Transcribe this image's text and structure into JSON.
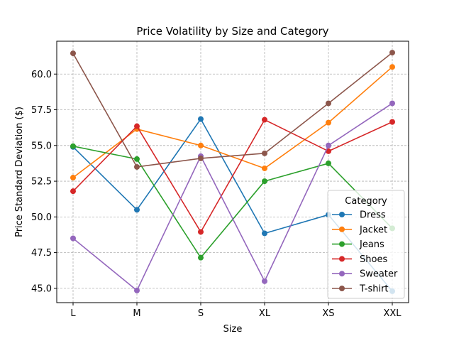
{
  "chart_data": {
    "type": "line",
    "title": "Price Volatility by Size and Category",
    "xlabel": "Size",
    "ylabel": "Price Standard Deviation ($)",
    "categories": [
      "L",
      "M",
      "S",
      "XL",
      "XS",
      "XXL"
    ],
    "ylim": [
      44.0,
      62.3
    ],
    "yticks": [
      45.0,
      47.5,
      50.0,
      52.5,
      55.0,
      57.5,
      60.0
    ],
    "ytick_labels": [
      "45.0",
      "47.5",
      "50.0",
      "52.5",
      "55.0",
      "57.5",
      "60.0"
    ],
    "grid": true,
    "legend": {
      "title": "Category",
      "placement": "lower-right"
    },
    "series": [
      {
        "name": "Dress",
        "color": "#1f77b4",
        "values": [
          54.9,
          50.5,
          56.85,
          48.85,
          50.15,
          44.8
        ]
      },
      {
        "name": "Jacket",
        "color": "#ff7f0e",
        "values": [
          52.75,
          56.15,
          55.0,
          53.4,
          56.6,
          60.5
        ]
      },
      {
        "name": "Jeans",
        "color": "#2ca02c",
        "values": [
          54.95,
          54.05,
          47.15,
          52.5,
          53.75,
          49.2
        ]
      },
      {
        "name": "Shoes",
        "color": "#d62728",
        "values": [
          51.8,
          56.35,
          48.95,
          56.8,
          54.6,
          56.65
        ]
      },
      {
        "name": "Sweater",
        "color": "#9467bd",
        "values": [
          48.5,
          44.85,
          54.25,
          45.5,
          55.0,
          57.95
        ]
      },
      {
        "name": "T-shirt",
        "color": "#8c564b",
        "values": [
          61.45,
          53.5,
          54.1,
          54.45,
          57.95,
          61.5
        ]
      }
    ]
  }
}
